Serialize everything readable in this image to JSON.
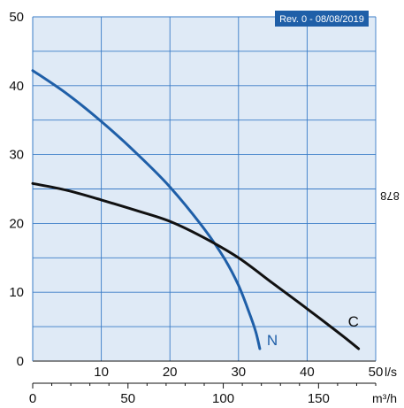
{
  "revision_badge": "Rev. 0 - 08/08/2019",
  "side_code": "878",
  "chart_data": {
    "type": "line",
    "title": "",
    "xlabel": "l/s",
    "x2label": "m³/h",
    "ylabel": "",
    "xlim": [
      0,
      50
    ],
    "ylim": [
      0,
      50
    ],
    "x2lim": [
      0,
      180
    ],
    "x_ticks": [
      10,
      20,
      30,
      40,
      50
    ],
    "y_ticks": [
      0,
      10,
      20,
      30,
      40,
      50
    ],
    "x2_ticks": [
      0,
      50,
      100,
      150
    ],
    "grid": true,
    "series": [
      {
        "name": "N",
        "color": "#1f5fa8",
        "x": [
          0,
          5,
          10,
          15,
          20,
          25,
          28,
          30,
          31.5,
          32.5,
          33.1
        ],
        "y": [
          42.2,
          38.8,
          34.8,
          30.3,
          25.3,
          19.2,
          14.8,
          11.0,
          7.2,
          4.3,
          1.8
        ]
      },
      {
        "name": "C",
        "color": "#111111",
        "x": [
          0,
          5,
          10,
          15,
          20,
          25,
          30,
          35,
          40,
          45,
          47.5
        ],
        "y": [
          25.8,
          24.8,
          23.4,
          21.9,
          20.3,
          17.9,
          15.0,
          11.3,
          7.6,
          3.8,
          1.8
        ]
      }
    ]
  }
}
